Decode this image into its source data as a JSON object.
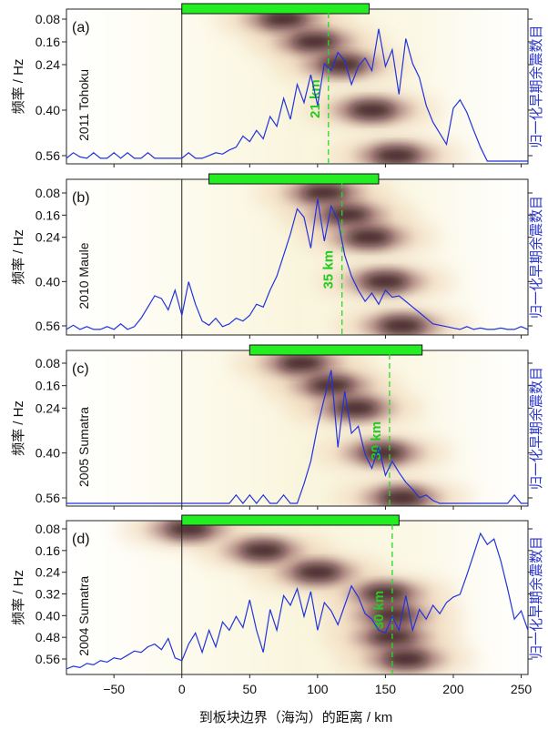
{
  "figure": {
    "xlabel": "到板块边界（海沟）的距离 / km",
    "ylabel_left": "频率 / Hz",
    "ylabel_right": "归一化早期余震数目",
    "x_ticks": [
      -50,
      0,
      50,
      100,
      150,
      200,
      250
    ],
    "xlim": [
      -85,
      255
    ],
    "colors": {
      "line": "#2233dd",
      "bar": "#22ee22",
      "dashed": "#22dd22",
      "dashed_text": "#22cc22",
      "right_label": "#2a36cc"
    }
  },
  "chart_data": [
    {
      "type": "heatmap",
      "panel": "(a)",
      "event": "2011 Tohoku",
      "y_ticks": [
        "0.08",
        "0.16",
        "0.24",
        "0.40",
        "0.56"
      ],
      "bar_range_km": [
        0,
        138
      ],
      "depth_label": "21 km",
      "dashed_x_km": 108,
      "bright_ridges": [
        {
          "f": 0.08,
          "x": 75
        },
        {
          "f": 0.16,
          "x": 98
        },
        {
          "f": 0.24,
          "x": 118
        },
        {
          "f": 0.4,
          "x": 140
        },
        {
          "f": 0.56,
          "x": 158
        }
      ],
      "aftershock_curve": {
        "x": [
          -85,
          -80,
          -75,
          -70,
          -65,
          -60,
          -55,
          -50,
          -45,
          -40,
          -35,
          -30,
          -25,
          -20,
          -15,
          -10,
          -5,
          0,
          5,
          10,
          15,
          20,
          25,
          30,
          35,
          40,
          45,
          50,
          55,
          60,
          65,
          70,
          75,
          80,
          85,
          90,
          95,
          100,
          105,
          110,
          115,
          120,
          125,
          130,
          135,
          140,
          145,
          150,
          155,
          160,
          165,
          170,
          175,
          180,
          185,
          190,
          195,
          200,
          205,
          210,
          215,
          220,
          225,
          230,
          235,
          240,
          245,
          250,
          255
        ],
        "y": [
          0.02,
          0.06,
          0.03,
          0.02,
          0.06,
          0.02,
          0.02,
          0.06,
          0.02,
          0.06,
          0.02,
          0.02,
          0.06,
          0.02,
          0.02,
          0.02,
          0.02,
          0.02,
          0.06,
          0.02,
          0.02,
          0.04,
          0.06,
          0.05,
          0.08,
          0.1,
          0.18,
          0.14,
          0.22,
          0.16,
          0.32,
          0.25,
          0.45,
          0.3,
          0.55,
          0.42,
          0.62,
          0.4,
          0.7,
          0.65,
          0.78,
          0.72,
          0.55,
          0.68,
          0.74,
          0.65,
          0.95,
          0.68,
          0.8,
          0.48,
          0.88,
          0.7,
          0.6,
          0.4,
          0.28,
          0.2,
          0.12,
          0.38,
          0.44,
          0.35,
          0.22,
          0.1,
          0.0,
          0.0,
          0.0,
          0.0,
          0.0,
          0.0,
          0.0
        ]
      }
    },
    {
      "type": "heatmap",
      "panel": "(b)",
      "event": "2010 Maule",
      "y_ticks": [
        "0.08",
        "0.16",
        "0.24",
        "0.40",
        "0.56"
      ],
      "bar_range_km": [
        20,
        145
      ],
      "depth_label": "35 km",
      "dashed_x_km": 118,
      "bright_ridges": [
        {
          "f": 0.08,
          "x": 105
        },
        {
          "f": 0.16,
          "x": 122
        },
        {
          "f": 0.24,
          "x": 138
        },
        {
          "f": 0.4,
          "x": 150
        },
        {
          "f": 0.56,
          "x": 162
        }
      ],
      "aftershock_curve": {
        "x": [
          -85,
          -80,
          -75,
          -70,
          -65,
          -60,
          -55,
          -50,
          -45,
          -40,
          -35,
          -30,
          -25,
          -20,
          -15,
          -10,
          -5,
          0,
          5,
          10,
          15,
          20,
          25,
          30,
          35,
          40,
          45,
          50,
          55,
          60,
          65,
          70,
          75,
          80,
          85,
          90,
          95,
          100,
          105,
          110,
          115,
          120,
          125,
          130,
          135,
          140,
          145,
          150,
          155,
          160,
          165,
          170,
          175,
          180,
          185,
          190,
          195,
          200,
          205,
          210,
          215,
          220,
          225,
          230,
          235,
          240,
          245,
          250,
          255
        ],
        "y": [
          0.02,
          0.05,
          0.02,
          0.04,
          0.02,
          0.02,
          0.04,
          0.02,
          0.06,
          0.02,
          0.04,
          0.1,
          0.18,
          0.26,
          0.24,
          0.16,
          0.3,
          0.12,
          0.36,
          0.2,
          0.08,
          0.05,
          0.1,
          0.04,
          0.06,
          0.1,
          0.08,
          0.12,
          0.2,
          0.18,
          0.3,
          0.4,
          0.55,
          0.7,
          0.88,
          0.82,
          0.6,
          0.95,
          0.65,
          0.9,
          0.8,
          0.55,
          0.4,
          0.3,
          0.22,
          0.28,
          0.2,
          0.3,
          0.25,
          0.26,
          0.22,
          0.18,
          0.14,
          0.1,
          0.06,
          0.05,
          0.04,
          0.03,
          0.02,
          0.04,
          0.02,
          0.03,
          0.02,
          0.02,
          0.03,
          0.02,
          0.02,
          0.04,
          0.02
        ]
      }
    },
    {
      "type": "heatmap",
      "panel": "(c)",
      "event": "2005 Sumatra",
      "y_ticks": [
        "0.08",
        "0.16",
        "0.24",
        "0.40",
        "0.56"
      ],
      "bar_range_km": [
        50,
        177
      ],
      "depth_label": "30 km",
      "dashed_x_km": 153,
      "bright_ridges": [
        {
          "f": 0.08,
          "x": 88
        },
        {
          "f": 0.16,
          "x": 110
        },
        {
          "f": 0.24,
          "x": 128
        },
        {
          "f": 0.4,
          "x": 148
        },
        {
          "f": 0.56,
          "x": 162
        }
      ],
      "aftershock_curve": {
        "x": [
          -85,
          -80,
          -75,
          -70,
          -65,
          -60,
          -55,
          -50,
          -45,
          -40,
          -35,
          -30,
          -25,
          -20,
          -15,
          -10,
          -5,
          0,
          5,
          10,
          15,
          20,
          25,
          30,
          35,
          40,
          45,
          50,
          55,
          60,
          65,
          70,
          75,
          80,
          85,
          90,
          95,
          100,
          105,
          110,
          115,
          120,
          125,
          130,
          135,
          140,
          145,
          150,
          155,
          160,
          165,
          170,
          175,
          180,
          185,
          190,
          195,
          200,
          205,
          210,
          215,
          220,
          225,
          230,
          235,
          240,
          245,
          250,
          255
        ],
        "y": [
          0.0,
          0.0,
          0.0,
          0.0,
          0.0,
          0.0,
          0.0,
          0.0,
          0.0,
          0.0,
          0.0,
          0.0,
          0.0,
          0.0,
          0.0,
          0.0,
          0.0,
          0.0,
          0.0,
          0.0,
          0.0,
          0.0,
          0.0,
          0.0,
          0.0,
          0.06,
          0.0,
          0.06,
          0.0,
          0.06,
          0.0,
          0.0,
          0.06,
          0.0,
          0.0,
          0.14,
          0.3,
          0.55,
          0.75,
          0.95,
          0.4,
          0.8,
          0.5,
          0.55,
          0.35,
          0.25,
          0.4,
          0.2,
          0.3,
          0.22,
          0.15,
          0.1,
          0.04,
          0.06,
          0.02,
          0.0,
          0.0,
          0.0,
          0.0,
          0.0,
          0.0,
          0.0,
          0.0,
          0.0,
          0.0,
          0.0,
          0.06,
          0.0,
          0.0
        ]
      }
    },
    {
      "type": "heatmap",
      "panel": "(d)",
      "event": "2004 Sumatra",
      "y_ticks": [
        "0.08",
        "0.16",
        "0.24",
        "0.32",
        "0.40",
        "0.48",
        "0.56"
      ],
      "bar_range_km": [
        0,
        160
      ],
      "depth_label": "30 km",
      "dashed_x_km": 155,
      "bright_ridges": [
        {
          "f": 0.08,
          "x": 5
        },
        {
          "f": 0.16,
          "x": 60
        },
        {
          "f": 0.24,
          "x": 100
        },
        {
          "f": 0.32,
          "x": 150
        },
        {
          "f": 0.4,
          "x": 155
        },
        {
          "f": 0.48,
          "x": 155
        },
        {
          "f": 0.56,
          "x": 165
        }
      ],
      "aftershock_curve": {
        "x": [
          -85,
          -80,
          -75,
          -70,
          -65,
          -60,
          -55,
          -50,
          -45,
          -40,
          -35,
          -30,
          -25,
          -20,
          -15,
          -10,
          -5,
          0,
          5,
          10,
          15,
          20,
          25,
          30,
          35,
          40,
          45,
          50,
          55,
          60,
          65,
          70,
          75,
          80,
          85,
          90,
          95,
          100,
          105,
          110,
          115,
          120,
          125,
          130,
          135,
          140,
          145,
          150,
          155,
          160,
          165,
          170,
          175,
          180,
          185,
          190,
          195,
          200,
          205,
          210,
          215,
          220,
          225,
          230,
          235,
          240,
          245,
          250,
          255
        ],
        "y": [
          0.02,
          0.04,
          0.03,
          0.06,
          0.05,
          0.08,
          0.07,
          0.1,
          0.09,
          0.12,
          0.15,
          0.14,
          0.18,
          0.2,
          0.16,
          0.24,
          0.1,
          0.08,
          0.2,
          0.28,
          0.14,
          0.3,
          0.18,
          0.36,
          0.3,
          0.4,
          0.32,
          0.52,
          0.3,
          0.14,
          0.45,
          0.3,
          0.55,
          0.48,
          0.6,
          0.4,
          0.58,
          0.3,
          0.5,
          0.44,
          0.34,
          0.48,
          0.62,
          0.54,
          0.42,
          0.38,
          0.3,
          0.28,
          0.4,
          0.3,
          0.55,
          0.3,
          0.45,
          0.38,
          0.48,
          0.42,
          0.5,
          0.54,
          0.56,
          0.7,
          0.85,
          1.0,
          0.92,
          0.96,
          0.8,
          0.6,
          0.38,
          0.44,
          0.3
        ]
      }
    }
  ]
}
